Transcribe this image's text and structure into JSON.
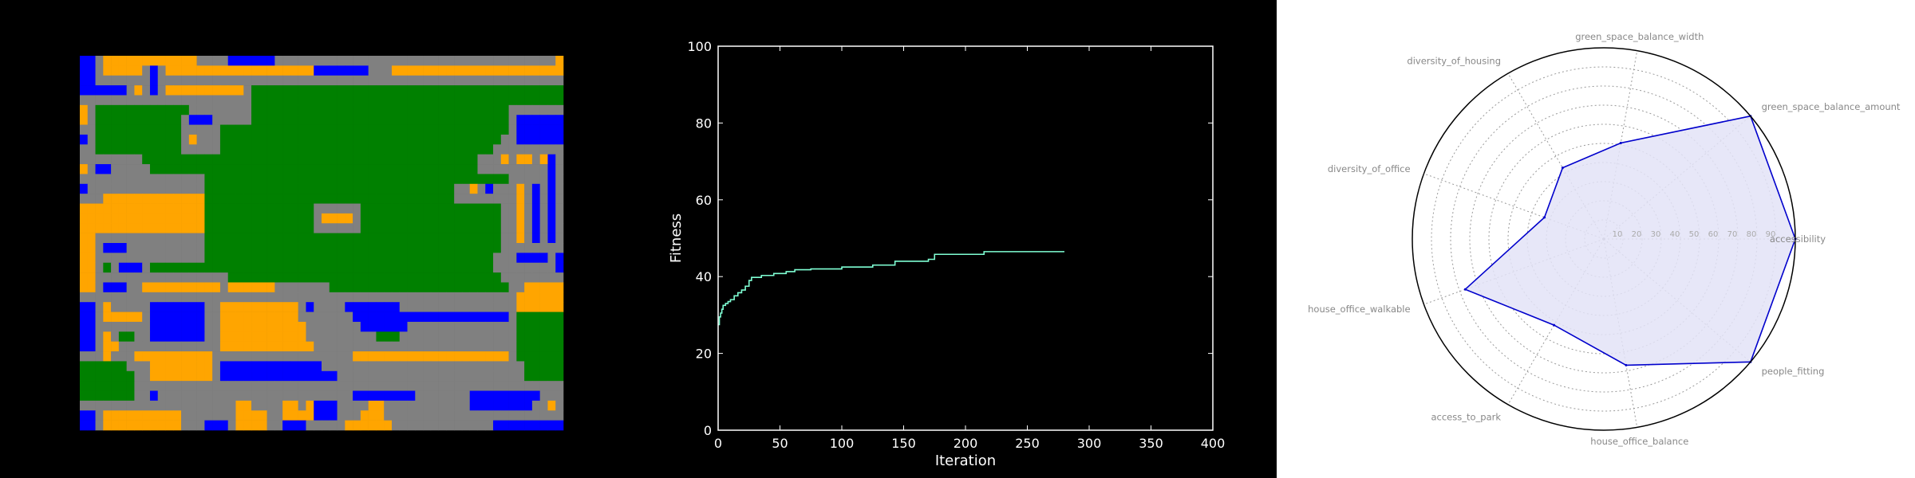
{
  "colors": {
    "left_bg": "#000000",
    "right_bg": "#ffffff",
    "road": "#808080",
    "green": "#008000",
    "office": "#0000ff",
    "house": "#ffa500",
    "fitness_line": "#7fffd4",
    "radar_line": "#0000cc",
    "radar_fill": "#e3e3f7"
  },
  "chart_data": [
    {
      "type": "heatmap",
      "title": "",
      "legend": [],
      "grid": [
        "BBROOOOOOOOOOOORRRRBBBBBBRRRRRRRRRRRRRRRRRRRRRRRRRRRRRRRRRRRRO",
        "BBROOOOORBROOOOOOOOOOOOOOOOOOOBBBBBBBRRROOOOOOOOOOOOOOOOOOOOOO",
        "BBRRRRRRRBRRRRRRRRRRRRRRRRRRRRRRRRRRRRRRRRRRRRRRRRRRRRRRRRRRRR",
        "BBBBBBRORBROOOOOOOOOORGGGGGGGGGGGGGGGGGGGGGGGGGGGGGGGGGGGGGGGG",
        "RRRRRRRRRRRRRRRRRRRRRRGGGGGGGGGGGGGGGGGGGGGGGGGGGGGGGGGGGGGGGG",
        "ORGGGGGGGGGGGGRRRRRRRRGGGGGGGGGGGGGGGGGGGGGGGGGGGGGGGGGRRRRRRR",
        "ORGGGGGGGGGGGRBBBRRRRRGGGGGGGGGGGGGGGGGGGGGGGGGGGGGGGGGRBBBBBB",
        "RRGGGGGGGGGGGRRRRRGGGGGGGGGGGGGGGGGGGGGGGGGGGGGGGGGGGGGRBBBBBB",
        "BRGGGGGGGGGGGRORRRGGGGGGGGGGGGGGGGGGGGGGGGGGGGGGGGGGGGRRBBBBBB",
        "RRGGGGGGGGGGGRRRRRGGGGGGGGGGGGGGGGGGGGGGGGGGGGGGGGGGGRRRRRRRRR",
        "RRRRRRRRGGGGGGGGGGGGGGGGGGGGGGGGGGGGGGGGGGGGGGGGGGGRRROROOROBR",
        "ORBBRRRRRGGGGGGGGGGGGGGGGGGGGGGGGGGGGGGGGGGGGGGGGGGRRRRRRRRRBR",
        "RRRRRRRRRRRRRRRRGGGGGGGGGGGGGGGGGGGGGGGGGGGGGGGGGGGGGGGRRRRRBR",
        "BRRRRRRRRRRRRRRRGGGGGGGGGGGGGGGGGGGGGGGGGGGGGGGGRRORBRRRORBRBR",
        "RRROOOOOOOOOOOOOGGGGGGGGGGGGGGGGGGGGGGGGGGGGGGGGRRRRRRRRORBRBR",
        "OOOOOOOOOOOOOOOOGGGGGGGGGGGGGGRRRRRRGGGGGGGGGGGGGGGGGGRRORBRBR",
        "OOOOOOOOOOOOOOOOGGGGGGGGGGGGGGROOOORGGGGGGGGGGGGGGGGGGRRORBRBR",
        "OOOOOOOOOOOOOOOOGGGGGGGGGGGGGGRRRRRRGGGGGGGGGGGGGGGGGGRRORBRBR",
        "OORRRRRRRRRRRRRRGGGGGGGGGGGGGGGGGGGGGGGGGGGGGGGGGGGGGGRRORBRBR",
        "OORBBBRRRRRRRRRRGGGGGGGGGGGGGGGGGGGGGGGGGGGGGGGGGGGGGGRRRRRRRR",
        "OORRRRRRRRRRRRRRGGGGGGGGGGGGGGGGGGGGGGGGGGGGGGGGGGGGGRRRBBBBRB",
        "OORGRBBBRGGGGGGGGGGGGGGGGGGGGGGGGGGGGGGGGGGGGGGGGGGGGRRRRRRRRB",
        "OORRRRRRRRRRRRRRRRRGGGGGGGGGGGGGGGGGGGGGGGGGGGGGGGGGGGRRRRRRRR",
        "OORBBBRROOOOOOOOOOROOOOOORRRRRRRGGGGGGGGGGGGGGGGGGGGGGGRROOOOO",
        "RRRRRRRRRRRRRRRRRRRRRRRRRRRRRRRRRRRRRRRRRRRRRRRRRRRRRRRROOOOOO",
        "BBRORRRRRBBBBBBBRROOOOOOOOOORBRRRRBBBBBBBRRRRRRRRRRRRRRROOOOOO",
        "BBROOOOORBBBBBBBRROOOOOOOOOORRRRRRRBBBBBBBBBBBBBBBBBBBBRGGGGGG",
        "BBRRRRRRRBBBBBBBRROOOOOOOOOOORRRRRRRBBBBBBRRRRRRRRRRRRRRGGGGGG",
        "BBRORGGRRBBBBBBBRROOOOOOOOOOORRRRRRRRRGGGRRRRRRRRRRRRRRRGGGGGG",
        "BBROORRRRRRRRRRRRROOOOOOOOOOOORRRRRRRRRRRRRRRRRRRRRRRRRRGGGGGG",
        "RRRORRROOOOOOOOOORRRRRRRRRRRRRRRRRROOOOOOOOOOOOOOOOOOOORGGGGGG",
        "GGGGGGRRROOOOOOOORBBBBBBBBBBBBBRRRRRRRRRRRRRRRRRRRRRRRRRRGGGGG",
        "GGGGGGGRROOOOOOOORBBBBBBBBBBBBBBBRRRRRRRRRRRRRRRRRRRRRRRRGGGGG",
        "GGGGGGGRRRRRRRRRRRRRRRRRRRRRRRRRRRRRRRRRRRRRRRRRRRRRRRRRRRRRRR",
        "GGGGGGGRRBRRRRRRRRRRRRRRRRRRRRRRRRRBBBBBBBBRRRRRRRBBBBBBBBBRRR",
        "RRRRRRRRRRRRRRRRRRRROORRRROOROBBBRRRROORRRRRRRRRRRBBBBBBBBRROR",
        "BBROOOOOOOOOORRRRRRROOOORROOOOBBBRRROOORRRRRRRRRRRRRRRRRRRRRRR",
        "BBROOOOOOOOOORRRBBBROOOORRBBBRRRRROOOOOORRRRRRRRRRRRRBBBBBBBBB"
      ],
      "cell_types": {
        "G": "green",
        "B": "office",
        "O": "house",
        "R": "road"
      }
    },
    {
      "type": "line",
      "title": "",
      "xlabel": "Iteration",
      "ylabel": "Fitness",
      "xlim": [
        0,
        400
      ],
      "ylim": [
        0,
        100
      ],
      "xticks": [
        "0",
        "50",
        "100",
        "150",
        "200",
        "250",
        "300",
        "350",
        "400"
      ],
      "yticks": [
        "0",
        "20",
        "40",
        "60",
        "80",
        "100"
      ],
      "grid": false,
      "series": [
        {
          "x": [
            0,
            1,
            2,
            3,
            4,
            6,
            8,
            10,
            13,
            16,
            19,
            22,
            25,
            27,
            35,
            45,
            55,
            62,
            75,
            100,
            125,
            143,
            170,
            175,
            215,
            280
          ],
          "y": [
            27.5,
            29.5,
            30.5,
            31.5,
            32.5,
            33.0,
            33.5,
            34.0,
            35.0,
            35.8,
            36.5,
            37.5,
            39.0,
            39.8,
            40.3,
            40.8,
            41.3,
            41.8,
            42.0,
            42.5,
            43.0,
            44.0,
            44.5,
            45.8,
            46.5,
            46.5
          ]
        }
      ]
    },
    {
      "type": "radar",
      "title": "",
      "axes": [
        "accessibility",
        "green_space_balance_amount",
        "green_space_balance_width",
        "diversity_of_housing",
        "diversity_of_office",
        "house_office_walkable",
        "access_to_park",
        "house_office_balance",
        "people_fitting"
      ],
      "rticks": [
        "10",
        "20",
        "30",
        "40",
        "50",
        "60",
        "70",
        "80",
        "90"
      ],
      "rlim": [
        0,
        100
      ],
      "grid": true,
      "series": [
        {
          "values": [
            100,
            100,
            51,
            43,
            33,
            77,
            52,
            67,
            100
          ]
        }
      ]
    }
  ]
}
